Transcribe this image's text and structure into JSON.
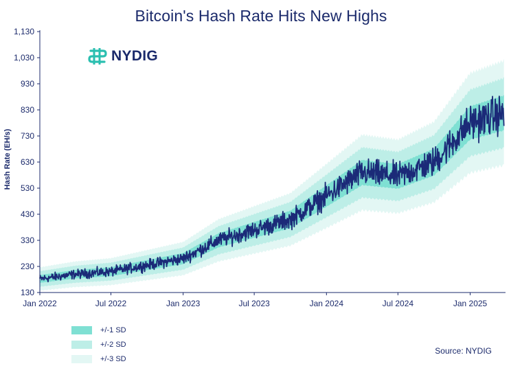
{
  "title": "Bitcoin's Hash Rate Hits New Highs",
  "logo": {
    "text": "NYDIG",
    "icon": "nydig-logo-icon"
  },
  "source": "Source: NYDIG",
  "colors": {
    "line": "#1b2a78",
    "sd1": "#7fe0d3",
    "sd2": "#bdeee7",
    "sd3": "#e3f7f4",
    "axis": "#1b2a6b"
  },
  "chart_data": {
    "type": "area",
    "title": "Bitcoin's Hash Rate Hits New Highs",
    "xlabel": "",
    "ylabel": "Hash Rate (EH/s)",
    "x_start": "2022-01-01",
    "x_end": "2025-04-01",
    "ylim": [
      130,
      1130
    ],
    "yticks": [
      "130",
      "230",
      "330",
      "430",
      "530",
      "630",
      "730",
      "830",
      "930",
      "1,030",
      "1,130"
    ],
    "xticks": [
      {
        "label": "Jan 2022",
        "date": "2022-01-01"
      },
      {
        "label": "Jul 2022",
        "date": "2022-07-01"
      },
      {
        "label": "Jan 2023",
        "date": "2023-01-01"
      },
      {
        "label": "Jul 2023",
        "date": "2023-07-01"
      },
      {
        "label": "Jan 2024",
        "date": "2024-01-01"
      },
      {
        "label": "Jul 2024",
        "date": "2024-07-01"
      },
      {
        "label": "Jan 2025",
        "date": "2025-01-01"
      }
    ],
    "trend": [
      {
        "date": "2022-01-01",
        "value": 182
      },
      {
        "date": "2022-04-01",
        "value": 200
      },
      {
        "date": "2022-07-01",
        "value": 210
      },
      {
        "date": "2022-10-01",
        "value": 235
      },
      {
        "date": "2023-01-01",
        "value": 260
      },
      {
        "date": "2023-04-01",
        "value": 330
      },
      {
        "date": "2023-07-01",
        "value": 370
      },
      {
        "date": "2023-10-01",
        "value": 410
      },
      {
        "date": "2024-01-01",
        "value": 500
      },
      {
        "date": "2024-04-01",
        "value": 590
      },
      {
        "date": "2024-07-01",
        "value": 575
      },
      {
        "date": "2024-10-01",
        "value": 630
      },
      {
        "date": "2025-01-01",
        "value": 780
      },
      {
        "date": "2025-04-01",
        "value": 820
      }
    ],
    "series": [
      {
        "name": "+/-1 SD",
        "band_sd": 1
      },
      {
        "name": "+/-2 SD",
        "band_sd": 2
      },
      {
        "name": "+/-3 SD",
        "band_sd": 3
      }
    ],
    "legend": [
      "+/-1 SD",
      "+/-2 SD",
      "+/-3 SD"
    ],
    "legend_position": "bottom-left",
    "grid": false
  }
}
